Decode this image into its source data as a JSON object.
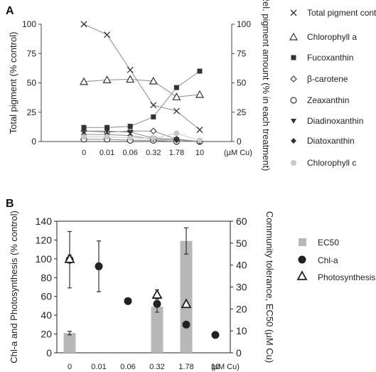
{
  "chart_data": [
    {
      "panel": "A",
      "type": "line",
      "categories": [
        "0",
        "0.01",
        "0.06",
        "0.32",
        "1.78",
        "10"
      ],
      "unit_label": "(µM Cu)",
      "ylabel_left": "Total pigment (% control)",
      "ylabel_right": "Rel. pigment amount (% in each treatment)",
      "ylim_left": [
        0,
        100
      ],
      "ylim_right": [
        0,
        100
      ],
      "yticks_left": [
        "0",
        "25",
        "50",
        "75",
        "100"
      ],
      "yticks_right": [
        "0",
        "25",
        "50",
        "75",
        "100"
      ],
      "legend_position": "right",
      "series": [
        {
          "name": "Total pigment content",
          "marker": "x",
          "color": "#333333",
          "axis": "left",
          "values": [
            100,
            91,
            61,
            31,
            26,
            10
          ]
        },
        {
          "name": "Chlorophyll a",
          "marker": "triangle-open",
          "color": "#333333",
          "axis": "right",
          "values": [
            51,
            52.5,
            53,
            51.5,
            38,
            40
          ]
        },
        {
          "name": "Fucoxanthin",
          "marker": "square-filled",
          "color": "#333333",
          "axis": "right",
          "values": [
            12,
            12,
            13,
            21,
            46,
            60
          ]
        },
        {
          "name": "β-carotene",
          "marker": "diamond-open",
          "color": "#333333",
          "axis": "right",
          "values": [
            9,
            8,
            9,
            9,
            2,
            0
          ]
        },
        {
          "name": "Zeaxanthin",
          "marker": "circle-open",
          "color": "#333333",
          "axis": "right",
          "values": [
            2,
            2,
            1,
            1,
            0,
            0
          ]
        },
        {
          "name": "Diadinoxanthin",
          "marker": "triangle-down-filled",
          "color": "#333333",
          "axis": "right",
          "values": [
            9,
            9,
            8,
            3,
            2,
            0
          ]
        },
        {
          "name": "Diatoxanthin",
          "marker": "diamond-filled",
          "color": "#333333",
          "axis": "right",
          "values": [
            6,
            6,
            5,
            2,
            1,
            0
          ]
        },
        {
          "name": "Chlorophyll c",
          "marker": "circle-filled",
          "color": "#c8c8c8",
          "axis": "right",
          "values": [
            4,
            4,
            3,
            3,
            7,
            1
          ]
        }
      ]
    },
    {
      "panel": "B",
      "type": "bar",
      "categories": [
        "0",
        "0.01",
        "0.06",
        "0.32",
        "1.78",
        "10"
      ],
      "unit_label": "(µM Cu)",
      "ylabel_left": "Chl-a and Photosynthesis (% control)",
      "ylabel_right": "Community tolerance, EC50 (µM Cu)",
      "ylim_left": [
        0,
        140
      ],
      "ylim_right": [
        0,
        60
      ],
      "yticks_left": [
        "0",
        "20",
        "40",
        "60",
        "80",
        "100",
        "120",
        "140"
      ],
      "yticks_right": [
        "0",
        "10",
        "20",
        "30",
        "40",
        "50",
        "60"
      ],
      "legend_position": "right",
      "series": [
        {
          "name": "EC50",
          "kind": "bar",
          "axis": "right",
          "color": "#b8b8b8",
          "values": [
            9,
            null,
            null,
            21,
            51,
            null
          ],
          "errors": [
            0.8,
            null,
            null,
            2.5,
            6,
            null
          ]
        },
        {
          "name": "Chl-a",
          "kind": "scatter",
          "marker": "circle-filled",
          "axis": "left",
          "color": "#222222",
          "values": [
            99,
            92,
            55,
            52,
            30,
            19
          ],
          "errors": [
            30,
            27,
            null,
            null,
            null,
            null
          ]
        },
        {
          "name": "Photosynthesis",
          "kind": "scatter",
          "marker": "triangle-open",
          "axis": "left",
          "color": "#222222",
          "values": [
            100,
            null,
            null,
            62,
            52,
            null
          ],
          "errors": [
            4,
            null,
            null,
            5,
            null,
            null
          ]
        }
      ]
    }
  ],
  "panels": {
    "A": {
      "label": "A"
    },
    "B": {
      "label": "B"
    }
  }
}
